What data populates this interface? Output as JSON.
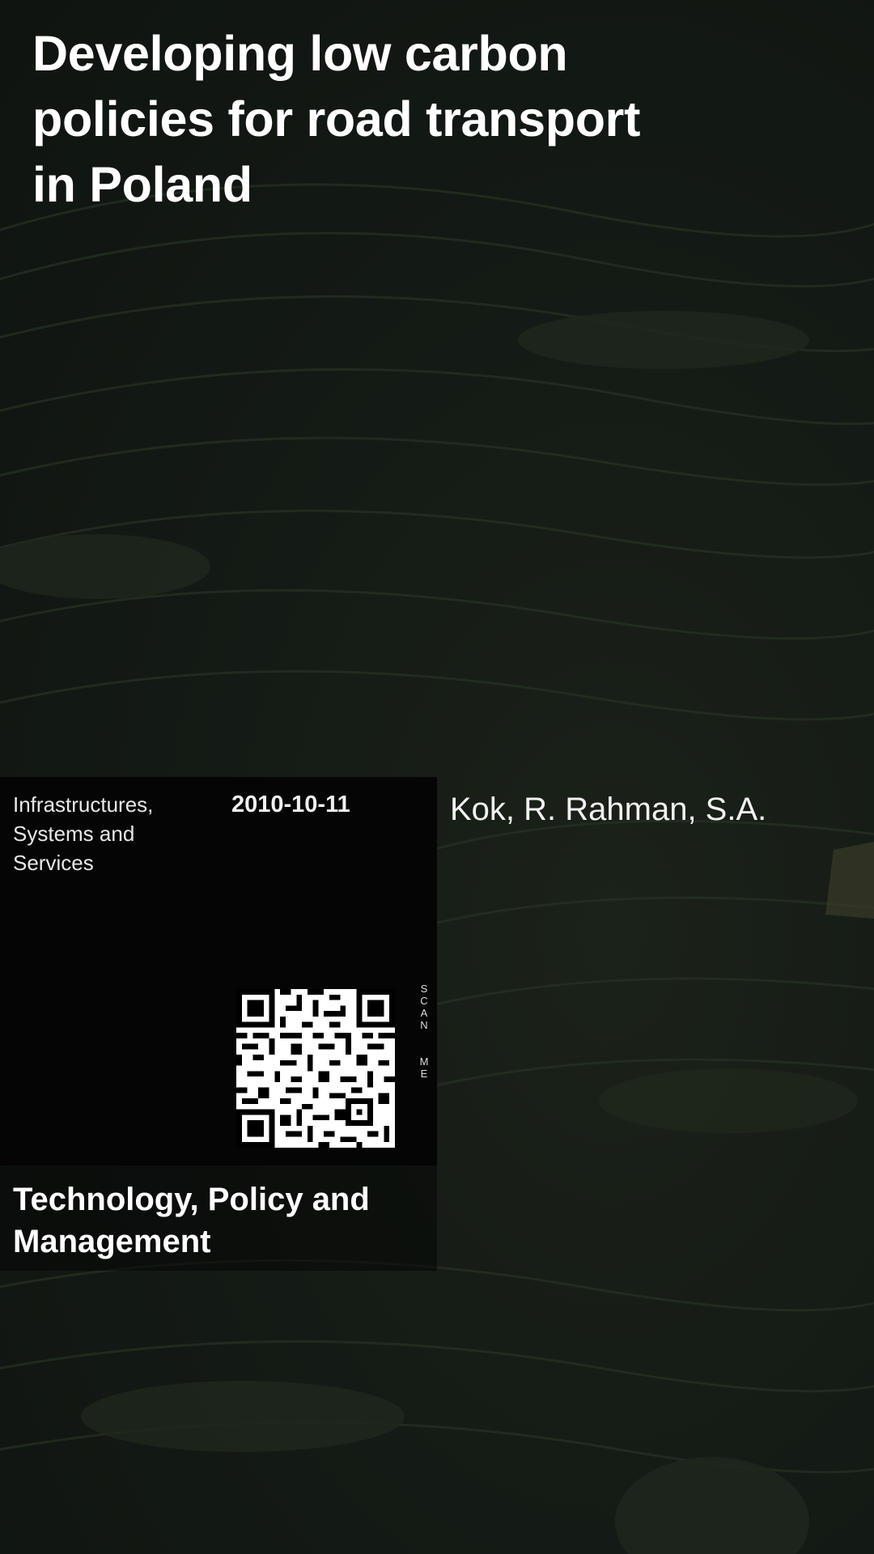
{
  "document": {
    "title": "Developing low carbon policies for road transport in Poland",
    "institute": "Infrastructures, Systems and Services",
    "date": "2010-10-11",
    "authors": "Kok, R. Rahman, S.A.",
    "faculty": "Technology, Policy and Management"
  },
  "qr": {
    "label_top": [
      "S",
      "C",
      "A",
      "N"
    ],
    "label_bottom": [
      "M",
      "E"
    ]
  },
  "colors": {
    "background": "#141b16",
    "panel": "#050505",
    "text": "#ffffff"
  }
}
